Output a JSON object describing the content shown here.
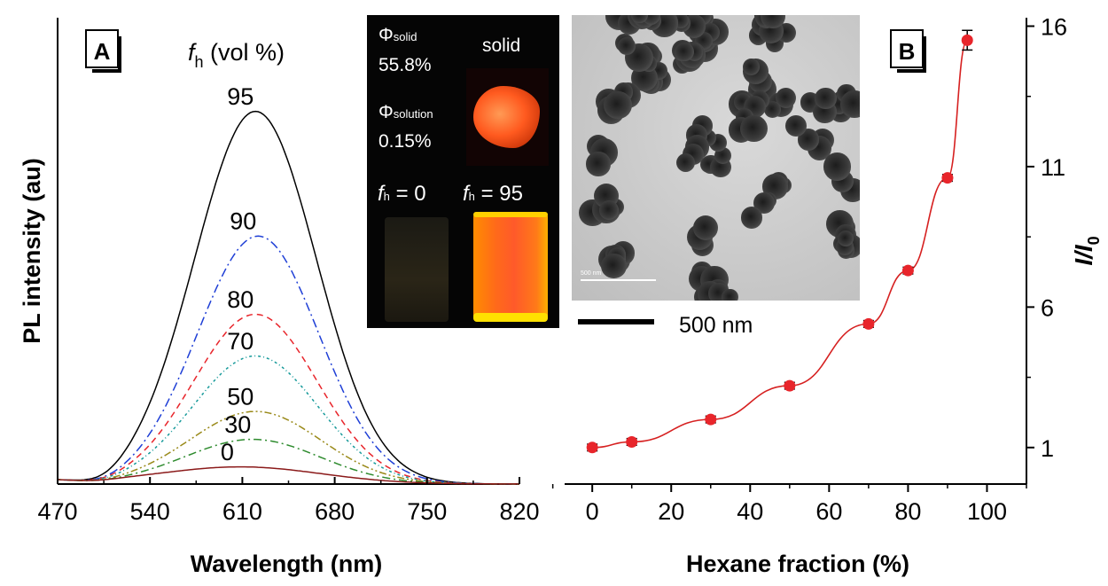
{
  "chart_data": [
    {
      "type": "line",
      "panel_label": "A",
      "xlabel": "Wavelength (nm)",
      "ylabel": "PL intensity (au)",
      "xlim": [
        470,
        820
      ],
      "x_ticks": [
        "470",
        "540",
        "610",
        "680",
        "750",
        "820"
      ],
      "legend_title_f": "f",
      "legend_title_sub": "h",
      "legend_title_rest": " (vol %)",
      "series": [
        {
          "name": "95",
          "color": "#000000",
          "dash": "",
          "peak_nm": 620,
          "peak": 100,
          "width": 65
        },
        {
          "name": "90",
          "color": "#1f3fd6",
          "dash": "10 4 2 4",
          "peak_nm": 622,
          "peak": 66.5,
          "width": 65
        },
        {
          "name": "80",
          "color": "#e8252b",
          "dash": "7 5",
          "peak_nm": 620,
          "peak": 45.5,
          "width": 66
        },
        {
          "name": "70",
          "color": "#169a9a",
          "dash": "3 3 1 3",
          "peak_nm": 620,
          "peak": 34.3,
          "width": 67
        },
        {
          "name": "50",
          "color": "#9a8a1a",
          "dash": "8 3 2 3 2 3",
          "peak_nm": 620,
          "peak": 19.4,
          "width": 70
        },
        {
          "name": "30",
          "color": "#2e8b2e",
          "dash": "9 4 2 4",
          "peak_nm": 618,
          "peak": 11.9,
          "width": 72
        },
        {
          "name": "0",
          "color": "#8b1a1a",
          "dash": "",
          "peak_nm": 610,
          "peak": 4.5,
          "width": 85
        }
      ]
    },
    {
      "type": "scatter",
      "panel_label": "B",
      "xlabel": "Hexane fraction (%)",
      "ylabel_main": "I",
      "ylabel_mid": "/",
      "ylabel_sub_letter": "I",
      "ylabel_sub": "0",
      "xlim": [
        -7,
        110
      ],
      "ylim": [
        -0.3,
        16.3
      ],
      "x_ticks": [
        "0",
        "20",
        "40",
        "60",
        "80",
        "100"
      ],
      "y_ticks": [
        "1",
        "6",
        "11",
        "16"
      ],
      "x": [
        0,
        10,
        30,
        50,
        70,
        80,
        90,
        95
      ],
      "y": [
        1.0,
        1.2,
        2.0,
        3.2,
        5.4,
        7.3,
        10.6,
        15.5
      ],
      "marker_color": "#e8252b",
      "fit_color": "#d62020"
    }
  ],
  "inset": {
    "phi": "Φ",
    "phi_solid_sub": "solid",
    "phi_solid_value": "55.8%",
    "phi_solution_sub": "solution",
    "phi_solution_value": "0.15%",
    "solid_label": "solid",
    "vial_left_f": "f",
    "vial_left_sub": "h",
    "vial_left_rest": " = 0",
    "vial_right_f": "f",
    "vial_right_sub": "h",
    "vial_right_rest": " = 95"
  },
  "tem": {
    "inner_scale_label": "500 nm",
    "scale_label": "500 nm"
  }
}
